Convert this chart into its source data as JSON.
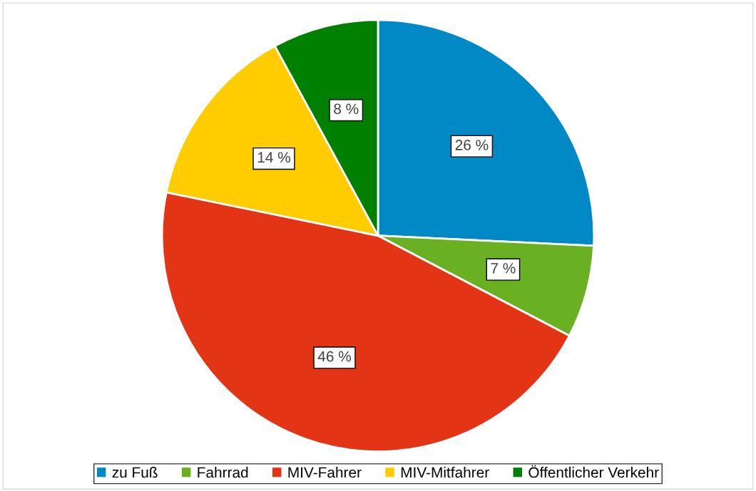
{
  "chart_data": {
    "type": "pie",
    "categories": [
      "zu Fuß",
      "Fahrrad",
      "MIV-Fahrer",
      "MIV-Mitfahrer",
      "Öffentlicher Verkehr"
    ],
    "values": [
      26,
      7,
      46,
      14,
      8
    ],
    "colors": [
      "#0089c4",
      "#6ab023",
      "#e33515",
      "#ffcc00",
      "#008000"
    ],
    "value_labels": [
      "26 %",
      "7 %",
      "46 %",
      "14 %",
      "8 %"
    ],
    "legend": "bottom"
  }
}
